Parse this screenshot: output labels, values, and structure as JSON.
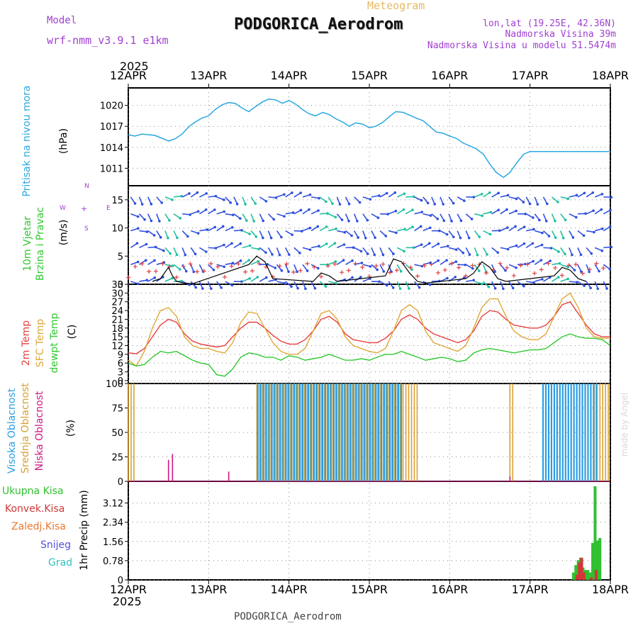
{
  "header": {
    "model_label": "Model",
    "model_name": "wrf-nmm_v3.9.1  e1km",
    "chart_kind": "Meteogram",
    "station": "PODGORICA_Aerodrom",
    "lonlat": "lon,lat (19.25E, 42.36N)",
    "elevation": "Nadmorska Visina 39m",
    "model_elevation": "Nadmorska Visina u modelu 51.5474m",
    "footer_station": "PODGORICA_Aerodrom",
    "credit": "made by Angel"
  },
  "time_axis": {
    "year": "2025",
    "labels": [
      "12APR",
      "13APR",
      "14APR",
      "15APR",
      "16APR",
      "17APR",
      "18APR"
    ]
  },
  "panels": {
    "pressure": {
      "label": "Pritisak na nivou mora",
      "unit": "(hPa)"
    },
    "wind": {
      "label_1": "10m Vjetar",
      "label_2": "Brzina i Pravac",
      "unit": "(m/s)",
      "compass": {
        "n": "N",
        "s": "S",
        "e": "E",
        "w": "W"
      }
    },
    "temp": {
      "label_1": "2m Temp",
      "label_2": "SFC Temp",
      "label_3": "dewpt Temp",
      "unit": "(C)"
    },
    "cloud": {
      "label_1": "Visoka Oblacnost",
      "label_2": "Srednja Oblacnost",
      "label_3": "Niska Oblacnost",
      "unit": "(%)"
    },
    "precip": {
      "label_unit": "1hr Precip (mm)",
      "legend": [
        "Ukupna Kisa",
        "Konvek.Kisa",
        "Zaledj.Kisa",
        "Snijeg",
        "Grad"
      ]
    }
  },
  "colors": {
    "pressure": "#2ba8e0",
    "t2m": "#e84040",
    "sfc": "#e0a838",
    "dew": "#30c830",
    "high": "#2c9ee0",
    "mid": "#d8a030",
    "low": "#d01880",
    "total": "#30c030",
    "conv": "#d03838",
    "frz": "#e87830",
    "snow": "#5050e0",
    "hail": "#30c0c0",
    "header_purple": "#a040d0",
    "meteogram_orange": "#e8b860",
    "wind_gust": "#000000",
    "wind_marker": "#e04040",
    "wind_arrow": "#3050e0",
    "wind_arrow_alt": "#20c0a0"
  },
  "chart_data": [
    {
      "type": "line",
      "title": "Pritisak na nivou mora",
      "ylabel": "(hPa)",
      "ylim": [
        1008.5,
        1022.5
      ],
      "yticks": [
        1011,
        1014,
        1017,
        1020
      ],
      "x_days": [
        0,
        0.08,
        0.17,
        0.25,
        0.33,
        0.42,
        0.5,
        0.58,
        0.67,
        0.75,
        0.83,
        0.92,
        1.0,
        1.08,
        1.17,
        1.25,
        1.33,
        1.42,
        1.5,
        1.58,
        1.67,
        1.75,
        1.83,
        1.92,
        2.0,
        2.08,
        2.17,
        2.25,
        2.33,
        2.42,
        2.5,
        2.58,
        2.67,
        2.75,
        2.83,
        2.92,
        3.0,
        3.08,
        3.17,
        3.25,
        3.33,
        3.42,
        3.5,
        3.58,
        3.67,
        3.75,
        3.83,
        3.92,
        4.0,
        4.08,
        4.17,
        4.25,
        4.33,
        4.42,
        4.5,
        4.58,
        4.67,
        4.75,
        4.83,
        4.92,
        5.0,
        5.08,
        5.17,
        5.25,
        5.33,
        5.42,
        5.5,
        5.58,
        5.67,
        5.75,
        5.83,
        5.92,
        6.0
      ],
      "values": [
        1015.8,
        1015.6,
        1015.9,
        1015.8,
        1015.7,
        1015.3,
        1014.9,
        1015.2,
        1015.9,
        1016.9,
        1017.6,
        1018.2,
        1018.5,
        1019.4,
        1020.1,
        1020.4,
        1020.3,
        1019.6,
        1019.1,
        1019.8,
        1020.5,
        1020.9,
        1020.8,
        1020.3,
        1020.7,
        1020.2,
        1019.4,
        1018.8,
        1018.5,
        1019.0,
        1018.7,
        1018.1,
        1017.6,
        1017.0,
        1017.5,
        1017.3,
        1016.8,
        1017.0,
        1017.6,
        1018.4,
        1019.1,
        1019.0,
        1018.6,
        1018.2,
        1017.8,
        1017.0,
        1016.2,
        1016.0,
        1015.6,
        1015.3,
        1014.6,
        1014.2,
        1013.8,
        1013.0,
        1011.6,
        1010.4,
        1009.7,
        1010.4,
        1011.7,
        1013.0,
        1013.4,
        1013.4,
        1013.4,
        1013.4,
        1013.4,
        1013.4,
        1013.4,
        1013.4,
        1013.4,
        1013.4,
        1013.4,
        1013.4,
        1013.4
      ]
    },
    {
      "type": "line",
      "title": "10m Vjetar Brzina i Pravac",
      "ylabel": "(m/s)",
      "ylim": [
        0,
        17.5
      ],
      "yticks": [
        0,
        5,
        10,
        15
      ],
      "series": [
        {
          "name": "gust",
          "x_days": [
            0.3,
            0.4,
            0.5,
            0.55,
            0.6,
            0.7,
            0.8,
            1.5,
            1.6,
            1.7,
            1.8,
            2.3,
            2.4,
            2.5,
            2.6,
            3.2,
            3.3,
            3.4,
            3.5,
            3.6,
            3.7,
            4.2,
            4.3,
            4.4,
            4.5,
            4.6,
            4.7,
            5.3,
            5.4,
            5.5,
            5.6,
            5.7
          ],
          "values": [
            0.5,
            1.0,
            3.0,
            1.5,
            0.5,
            0.2,
            0.1,
            3.5,
            5.0,
            4.0,
            1.0,
            0.5,
            2.0,
            1.5,
            0.5,
            1.5,
            4.5,
            4.0,
            2.0,
            0.5,
            0.2,
            1.0,
            2.0,
            4.0,
            3.0,
            1.0,
            0.5,
            1.5,
            3.0,
            2.5,
            1.0,
            0.5
          ]
        }
      ]
    },
    {
      "type": "line",
      "title": "2m Temp / SFC Temp / dewpt Temp",
      "ylabel": "(C)",
      "ylim": [
        -1,
        33
      ],
      "yticks": [
        0,
        3,
        6,
        9,
        12,
        15,
        18,
        21,
        24,
        27,
        30,
        33
      ],
      "x_days": [
        0,
        0.1,
        0.2,
        0.3,
        0.4,
        0.5,
        0.6,
        0.7,
        0.8,
        0.9,
        1.0,
        1.1,
        1.2,
        1.3,
        1.4,
        1.5,
        1.6,
        1.7,
        1.8,
        1.9,
        2.0,
        2.1,
        2.2,
        2.3,
        2.4,
        2.5,
        2.6,
        2.7,
        2.8,
        2.9,
        3.0,
        3.1,
        3.2,
        3.3,
        3.4,
        3.5,
        3.6,
        3.7,
        3.8,
        3.9,
        4.0,
        4.1,
        4.2,
        4.3,
        4.4,
        4.5,
        4.6,
        4.7,
        4.8,
        4.9,
        5.0,
        5.1,
        5.2,
        5.3,
        5.4,
        5.5,
        5.6,
        5.7,
        5.8,
        5.9,
        6.0
      ],
      "series": [
        {
          "name": "2m Temp",
          "values": [
            9.5,
            9.2,
            11,
            15,
            19,
            21,
            20,
            16,
            13.5,
            12.5,
            12,
            11.5,
            12,
            15,
            18,
            20,
            20,
            18,
            15.5,
            13.5,
            12.5,
            12.5,
            14,
            17,
            21,
            22,
            20,
            16,
            14,
            13.5,
            13,
            13,
            14.5,
            17,
            21,
            22.5,
            21,
            18,
            16,
            15,
            14,
            13,
            14,
            17,
            22,
            24,
            23.5,
            21,
            19,
            18.5,
            18,
            18,
            19,
            22,
            26,
            27,
            23,
            19,
            16,
            15,
            15
          ]
        },
        {
          "name": "SFC Temp",
          "values": [
            7,
            5,
            10,
            18,
            24,
            25,
            22,
            15,
            12,
            11,
            11,
            10,
            9.5,
            13,
            20,
            23.5,
            23,
            18,
            13,
            10,
            9,
            9,
            11,
            17,
            23,
            24,
            21,
            15,
            12,
            11,
            10,
            9.5,
            11,
            17,
            24,
            26,
            24,
            17,
            13,
            12,
            11,
            10,
            12,
            18,
            25,
            28,
            28,
            22,
            17,
            15,
            14,
            14,
            16,
            22,
            28,
            30,
            25,
            18,
            15,
            14.5,
            14.5
          ]
        },
        {
          "name": "dewpt Temp",
          "values": [
            6,
            5,
            5.5,
            8,
            10,
            9.5,
            10,
            8.5,
            7,
            6,
            5.5,
            2,
            1.5,
            4,
            8,
            9.5,
            9,
            8,
            8,
            7,
            8.5,
            8,
            7,
            7.5,
            8,
            9,
            8,
            7,
            7,
            7.5,
            7,
            8,
            9,
            9,
            10,
            9,
            8,
            7,
            7.5,
            8,
            7.5,
            6.5,
            7,
            9.5,
            10.5,
            11,
            10.5,
            10,
            9.5,
            10,
            10.5,
            10.5,
            11,
            13,
            15,
            16,
            15,
            14.5,
            14.5,
            14,
            12
          ]
        }
      ]
    },
    {
      "type": "bar",
      "title": "Visoka / Srednja / Niska Oblacnost",
      "ylabel": "(%)",
      "ylim": [
        0,
        100
      ],
      "yticks": [
        0,
        25,
        50,
        75,
        100
      ],
      "series": [
        {
          "name": "Visoka Oblacnost",
          "intervals_days": [
            [
              1.6,
              3.42
            ],
            [
              5.15,
              5.85
            ]
          ],
          "values_pct": [
            100,
            100
          ]
        },
        {
          "name": "Srednja Oblacnost",
          "intervals_days": [
            [
              0.0,
              0.1
            ],
            [
              1.6,
              3.6
            ],
            [
              4.75,
              4.8
            ],
            [
              5.8,
              6.0
            ]
          ],
          "values_pct": [
            100,
            100,
            100,
            100
          ]
        },
        {
          "name": "Niska Oblacnost",
          "spikes": [
            {
              "day": 0.5,
              "value": 22
            },
            {
              "day": 0.55,
              "value": 28
            },
            {
              "day": 1.25,
              "value": 10
            },
            {
              "day": 4.75,
              "value": 5
            }
          ]
        }
      ]
    },
    {
      "type": "bar",
      "title": "1hr Precip",
      "ylabel": "1hr Precip (mm)",
      "ylim": [
        0,
        4.0
      ],
      "yticks": [
        0,
        0.78,
        1.56,
        2.34,
        3.12
      ],
      "series": [
        {
          "name": "Ukupna Kisa",
          "x_days": [
            5.54,
            5.57,
            5.6,
            5.63,
            5.66,
            5.69,
            5.72,
            5.75,
            5.78,
            5.81,
            5.84,
            5.87
          ],
          "values": [
            0.3,
            0.6,
            0.8,
            0.9,
            0.5,
            0.4,
            0.4,
            0.3,
            1.5,
            3.8,
            1.6,
            1.7
          ]
        },
        {
          "name": "Konvek.Kisa",
          "x_days": [
            5.57,
            5.6,
            5.63,
            5.66,
            5.75,
            5.81
          ],
          "values": [
            0.2,
            0.7,
            0.9,
            0.3,
            0.1,
            0.4
          ]
        }
      ]
    }
  ]
}
